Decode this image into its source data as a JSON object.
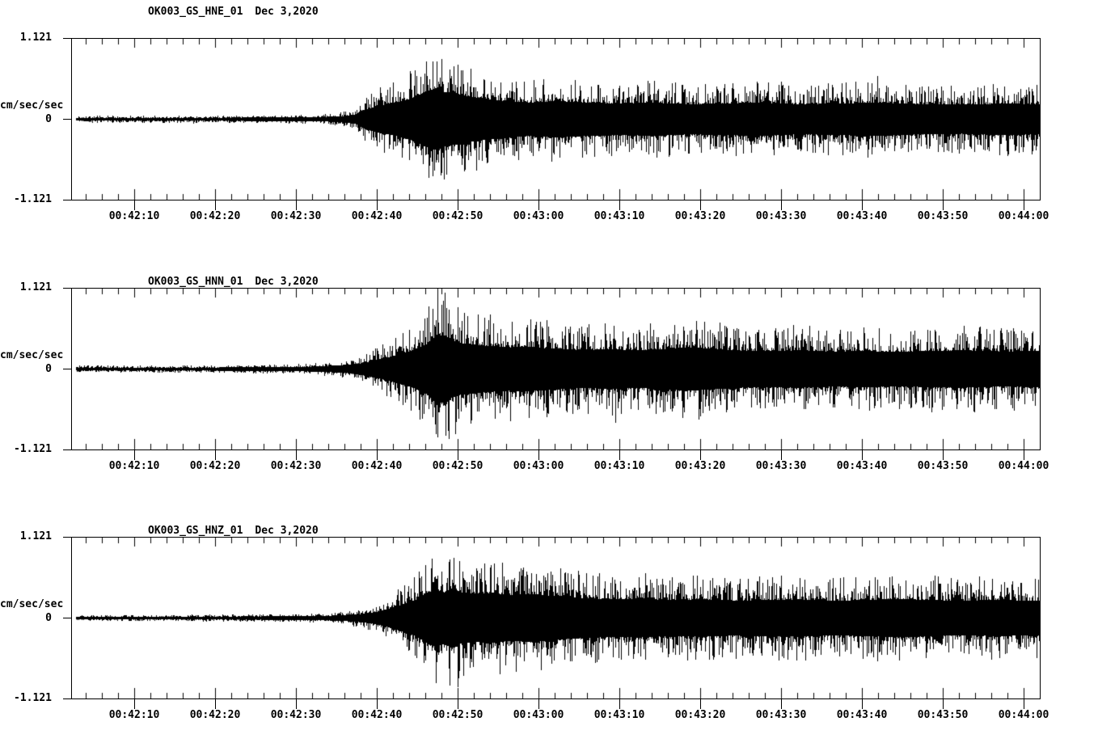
{
  "page": {
    "background_color": "#ffffff",
    "ink_color": "#000000",
    "description": "Three-component strong-motion seismogram record section, station OK003"
  },
  "chart_data": [
    {
      "type": "line",
      "kind": "seismogram",
      "title_station": "OK003_GS_HNE_01",
      "title_date": "Dec 3,2020",
      "ylabel": "cm/sec/sec",
      "y_max_label": "1.121",
      "y_zero_label": "0",
      "y_min_label": "-1.121",
      "ylim": [
        -1.121,
        1.121
      ],
      "x_window_seconds": 120,
      "xtick_labels": [
        "00:42:10",
        "00:42:20",
        "00:42:30",
        "00:42:40",
        "00:42:50",
        "00:43:00",
        "00:43:10",
        "00:43:20",
        "00:43:30",
        "00:43:40",
        "00:43:50",
        "00:44:00"
      ],
      "xtick_seconds": [
        7.7,
        17.7,
        27.7,
        37.7,
        47.7,
        57.7,
        67.7,
        77.7,
        87.7,
        97.7,
        107.7,
        117.7
      ],
      "minor_tick_interval_seconds": 2,
      "envelope_t_seconds": [
        0,
        14,
        24,
        30,
        33,
        35,
        36,
        38,
        40,
        42,
        44,
        45,
        46,
        48,
        50,
        53,
        56,
        60,
        64,
        68,
        72,
        76,
        80,
        85,
        90,
        95,
        100,
        105,
        110,
        115,
        120
      ],
      "envelope_amplitude": [
        0.05,
        0.05,
        0.055,
        0.065,
        0.09,
        0.15,
        0.3,
        0.45,
        0.55,
        0.7,
        0.95,
        1.02,
        0.9,
        0.8,
        0.72,
        0.62,
        0.55,
        0.6,
        0.55,
        0.52,
        0.55,
        0.5,
        0.52,
        0.55,
        0.5,
        0.52,
        0.55,
        0.5,
        0.48,
        0.52,
        0.5
      ],
      "noise_seed": 101
    },
    {
      "type": "line",
      "kind": "seismogram",
      "title_station": "OK003_GS_HNN_01",
      "title_date": "Dec 3,2020",
      "ylabel": "cm/sec/sec",
      "y_max_label": "1.121",
      "y_zero_label": "0",
      "y_min_label": "-1.121",
      "ylim": [
        -1.121,
        1.121
      ],
      "x_window_seconds": 120,
      "xtick_labels": [
        "00:42:10",
        "00:42:20",
        "00:42:30",
        "00:42:40",
        "00:42:50",
        "00:43:00",
        "00:43:10",
        "00:43:20",
        "00:43:30",
        "00:43:40",
        "00:43:50",
        "00:44:00"
      ],
      "xtick_seconds": [
        7.7,
        17.7,
        27.7,
        37.7,
        47.7,
        57.7,
        67.7,
        77.7,
        87.7,
        97.7,
        107.7,
        117.7
      ],
      "minor_tick_interval_seconds": 2,
      "envelope_t_seconds": [
        0,
        14,
        20,
        25,
        28,
        31,
        34,
        36,
        38,
        40,
        42,
        44,
        45,
        46,
        47,
        48,
        50,
        52,
        54,
        56,
        58,
        60,
        63,
        66,
        70,
        73,
        76,
        79,
        82,
        86,
        90,
        94,
        98,
        102,
        106,
        110,
        115,
        120
      ],
      "envelope_amplitude": [
        0.05,
        0.05,
        0.055,
        0.06,
        0.07,
        0.09,
        0.13,
        0.2,
        0.32,
        0.45,
        0.6,
        0.85,
        1.12,
        1.1,
        0.95,
        0.85,
        0.8,
        0.75,
        0.72,
        0.75,
        0.7,
        0.68,
        0.62,
        0.66,
        0.62,
        0.66,
        0.72,
        0.68,
        0.62,
        0.6,
        0.62,
        0.58,
        0.6,
        0.57,
        0.6,
        0.62,
        0.58,
        0.6
      ],
      "noise_seed": 202
    },
    {
      "type": "line",
      "kind": "seismogram",
      "title_station": "OK003_GS_HNZ_01",
      "title_date": "Dec 3,2020",
      "ylabel": "cm/sec/sec",
      "y_max_label": "1.121",
      "y_zero_label": "0",
      "y_min_label": "-1.121",
      "ylim": [
        -1.121,
        1.121
      ],
      "x_window_seconds": 120,
      "xtick_labels": [
        "00:42:10",
        "00:42:20",
        "00:42:30",
        "00:42:40",
        "00:42:50",
        "00:43:00",
        "00:43:10",
        "00:43:20",
        "00:43:30",
        "00:43:40",
        "00:43:50",
        "00:44:00"
      ],
      "xtick_seconds": [
        7.7,
        17.7,
        27.7,
        37.7,
        47.7,
        57.7,
        67.7,
        77.7,
        87.7,
        97.7,
        107.7,
        117.7
      ],
      "minor_tick_interval_seconds": 2,
      "envelope_t_seconds": [
        0,
        14,
        20,
        25,
        28,
        31,
        34,
        36,
        38,
        40,
        42,
        43,
        44,
        45,
        46,
        47,
        48,
        50,
        52,
        54,
        57,
        60,
        63,
        66,
        70,
        74,
        78,
        82,
        86,
        90,
        94,
        98,
        102,
        106,
        110,
        114,
        118,
        120
      ],
      "envelope_amplitude": [
        0.045,
        0.045,
        0.05,
        0.055,
        0.06,
        0.07,
        0.1,
        0.14,
        0.22,
        0.38,
        0.55,
        0.68,
        0.85,
        0.95,
        0.85,
        1.0,
        0.85,
        0.8,
        0.83,
        0.75,
        0.8,
        0.72,
        0.66,
        0.62,
        0.64,
        0.6,
        0.62,
        0.57,
        0.6,
        0.62,
        0.57,
        0.6,
        0.63,
        0.6,
        0.56,
        0.6,
        0.57,
        0.57
      ],
      "noise_seed": 303
    }
  ]
}
